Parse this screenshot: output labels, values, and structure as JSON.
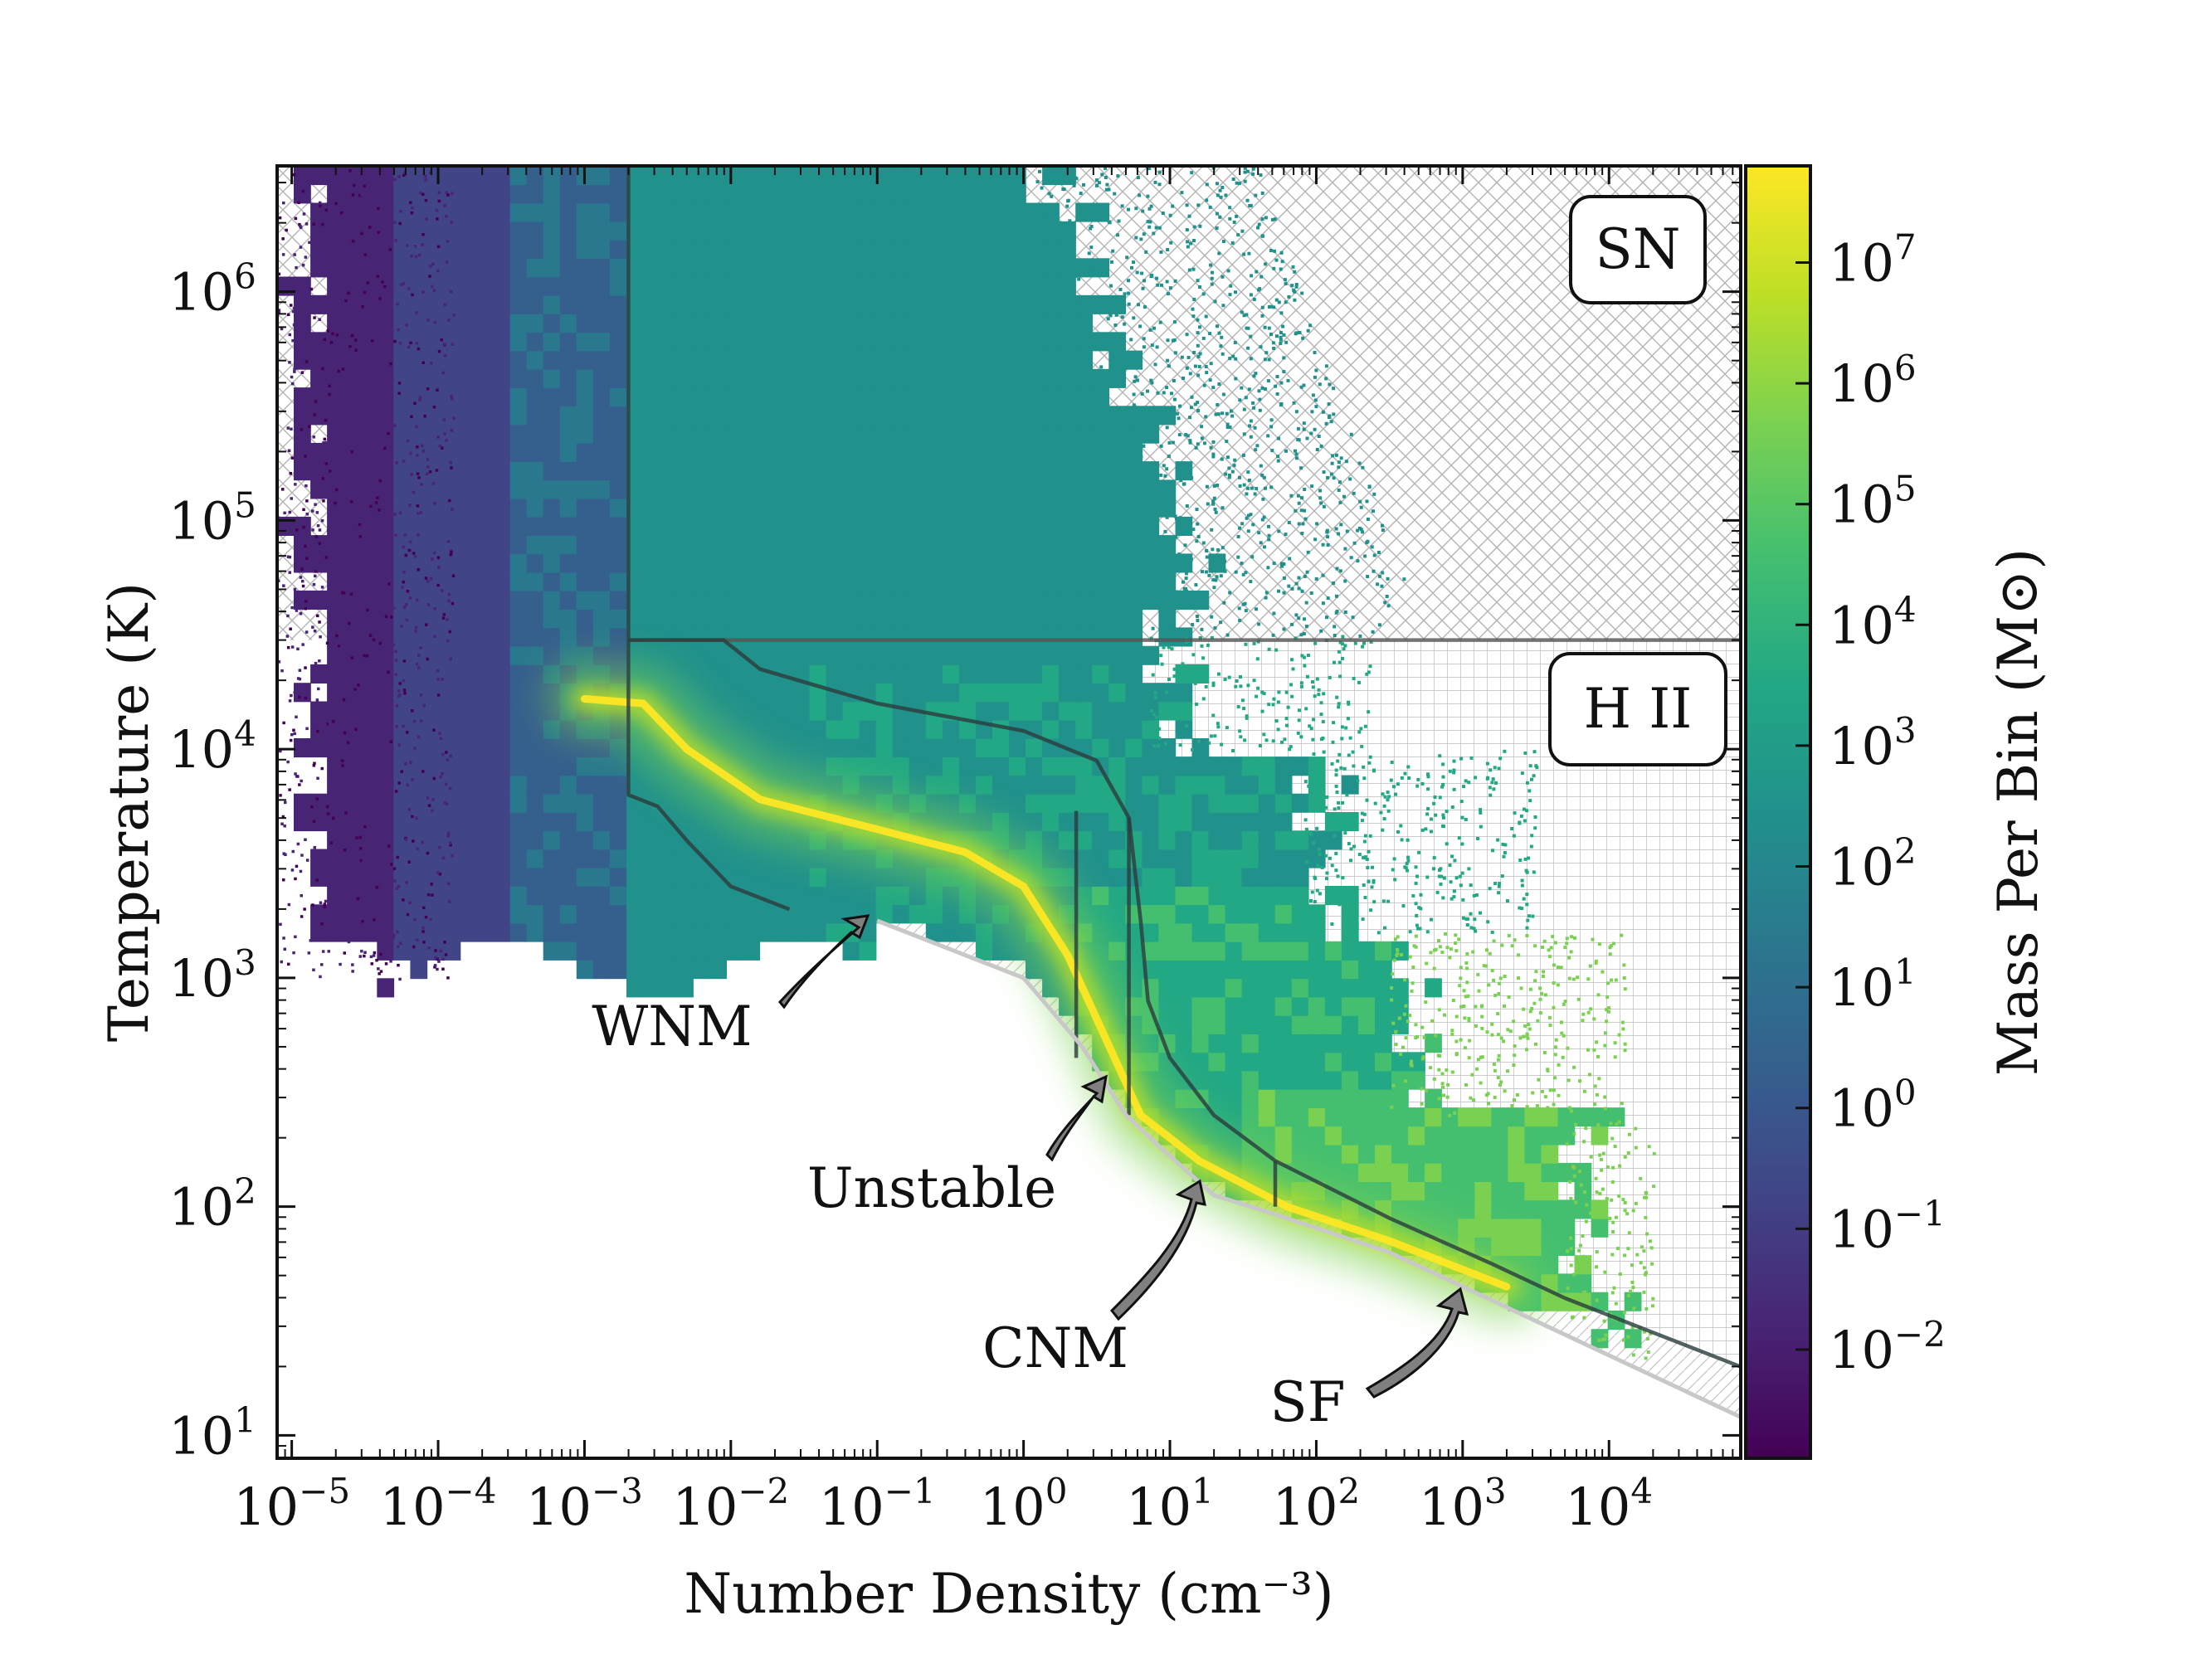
{
  "chart_data": {
    "type": "heatmap",
    "title": "",
    "xlabel": "Number Density  (cm⁻³)",
    "ylabel": "Temperature  (K)",
    "xscale": "log",
    "yscale": "log",
    "xlim_log10": [
      -5.1,
      4.9
    ],
    "ylim_log10": [
      0.9,
      6.55
    ],
    "x_ticks": [
      {
        "exp": -5,
        "label_base": "10",
        "label_exp": "−5"
      },
      {
        "exp": -4,
        "label_base": "10",
        "label_exp": "−4"
      },
      {
        "exp": -3,
        "label_base": "10",
        "label_exp": "−3"
      },
      {
        "exp": -2,
        "label_base": "10",
        "label_exp": "−2"
      },
      {
        "exp": -1,
        "label_base": "10",
        "label_exp": "−1"
      },
      {
        "exp": 0,
        "label_base": "10",
        "label_exp": "0"
      },
      {
        "exp": 1,
        "label_base": "10",
        "label_exp": "1"
      },
      {
        "exp": 2,
        "label_base": "10",
        "label_exp": "2"
      },
      {
        "exp": 3,
        "label_base": "10",
        "label_exp": "3"
      },
      {
        "exp": 4,
        "label_base": "10",
        "label_exp": "4"
      }
    ],
    "y_ticks": [
      {
        "exp": 1,
        "label_base": "10",
        "label_exp": "1"
      },
      {
        "exp": 2,
        "label_base": "10",
        "label_exp": "2"
      },
      {
        "exp": 3,
        "label_base": "10",
        "label_exp": "3"
      },
      {
        "exp": 4,
        "label_base": "10",
        "label_exp": "4"
      },
      {
        "exp": 5,
        "label_base": "10",
        "label_exp": "5"
      },
      {
        "exp": 6,
        "label_base": "10",
        "label_exp": "6"
      }
    ],
    "colorbar": {
      "label": "Mass Per Bin  (M⊙)",
      "colormap": "viridis",
      "range_log10": [
        -2.9,
        7.8
      ],
      "ticks": [
        {
          "exp": -2,
          "label_base": "10",
          "label_exp": "−2"
        },
        {
          "exp": -1,
          "label_base": "10",
          "label_exp": "−1"
        },
        {
          "exp": 0,
          "label_base": "10",
          "label_exp": "0"
        },
        {
          "exp": 1,
          "label_base": "10",
          "label_exp": "1"
        },
        {
          "exp": 2,
          "label_base": "10",
          "label_exp": "2"
        },
        {
          "exp": 3,
          "label_base": "10",
          "label_exp": "3"
        },
        {
          "exp": 4,
          "label_base": "10",
          "label_exp": "4"
        },
        {
          "exp": 5,
          "label_base": "10",
          "label_exp": "5"
        },
        {
          "exp": 6,
          "label_base": "10",
          "label_exp": "6"
        },
        {
          "exp": 7,
          "label_base": "10",
          "label_exp": "7"
        }
      ]
    },
    "regions": [
      {
        "name": "SN",
        "label": "SN",
        "description": "hatched region T > 3x10^4 K",
        "log10_T_min": 4.477
      },
      {
        "name": "HII",
        "label": "H II",
        "description": "grid-hatched region",
        "log10_T_max": 4.477
      }
    ],
    "annotations": [
      {
        "label": "WNM",
        "arrow_to_log10": [
          -1.15,
          3.3
        ]
      },
      {
        "label": "Unstable",
        "arrow_to_log10": [
          0.55,
          2.6
        ]
      },
      {
        "label": "CNM",
        "arrow_to_log10": [
          1.2,
          2.18
        ]
      },
      {
        "label": "SF",
        "arrow_to_log10": [
          3.0,
          1.7
        ]
      }
    ],
    "boundary_lines": [
      {
        "name": "sn-lower-boundary",
        "points_log10": [
          [
            -2.7,
            4.477
          ],
          [
            4.9,
            4.477
          ]
        ]
      },
      {
        "name": "left-boundary",
        "points_log10": [
          [
            -2.7,
            6.55
          ],
          [
            -2.7,
            3.8
          ],
          [
            -2.5,
            3.75
          ],
          [
            -2.3,
            3.6
          ],
          [
            -2.0,
            3.4
          ],
          [
            -1.6,
            3.3
          ]
        ]
      },
      {
        "name": "hii-upper-curve",
        "points_log10": [
          [
            -2.7,
            4.477
          ],
          [
            -2.05,
            4.477
          ],
          [
            -1.8,
            4.35
          ],
          [
            -1.0,
            4.2
          ],
          [
            0.0,
            4.08
          ],
          [
            0.5,
            3.95
          ],
          [
            0.72,
            3.7
          ],
          [
            0.8,
            3.25
          ],
          [
            0.85,
            2.9
          ],
          [
            1.0,
            2.65
          ],
          [
            1.3,
            2.4
          ],
          [
            1.72,
            2.2
          ],
          [
            2.5,
            1.95
          ],
          [
            3.2,
            1.75
          ],
          [
            3.7,
            1.6
          ],
          [
            4.9,
            1.3
          ]
        ]
      },
      {
        "name": "unstable-left-bound",
        "points_log10": [
          [
            0.36,
            3.73
          ],
          [
            0.36,
            2.65
          ]
        ]
      },
      {
        "name": "unstable-right-bound",
        "points_log10": [
          [
            0.72,
            3.7
          ],
          [
            0.72,
            2.4
          ]
        ]
      },
      {
        "name": "cnm-right-bound",
        "points_log10": [
          [
            1.72,
            2.2
          ],
          [
            1.72,
            2.0
          ]
        ]
      },
      {
        "name": "lower-envelope",
        "points_log10": [
          [
            -1.0,
            3.25
          ],
          [
            0.0,
            3.0
          ],
          [
            0.4,
            2.7
          ],
          [
            0.7,
            2.4
          ],
          [
            0.95,
            2.25
          ],
          [
            1.3,
            2.05
          ],
          [
            1.7,
            1.97
          ],
          [
            2.5,
            1.8
          ],
          [
            3.5,
            1.5
          ],
          [
            4.9,
            1.08
          ]
        ]
      }
    ],
    "density_ridge_log10": [
      [
        -3.0,
        4.22
      ],
      [
        -2.6,
        4.2
      ],
      [
        -2.3,
        4.0
      ],
      [
        -1.8,
        3.78
      ],
      [
        -1.0,
        3.65
      ],
      [
        -0.4,
        3.55
      ],
      [
        0.0,
        3.4
      ],
      [
        0.3,
        3.1
      ],
      [
        0.55,
        2.75
      ],
      [
        0.8,
        2.4
      ],
      [
        1.2,
        2.2
      ],
      [
        1.8,
        2.0
      ],
      [
        2.5,
        1.85
      ],
      [
        3.3,
        1.65
      ]
    ]
  }
}
